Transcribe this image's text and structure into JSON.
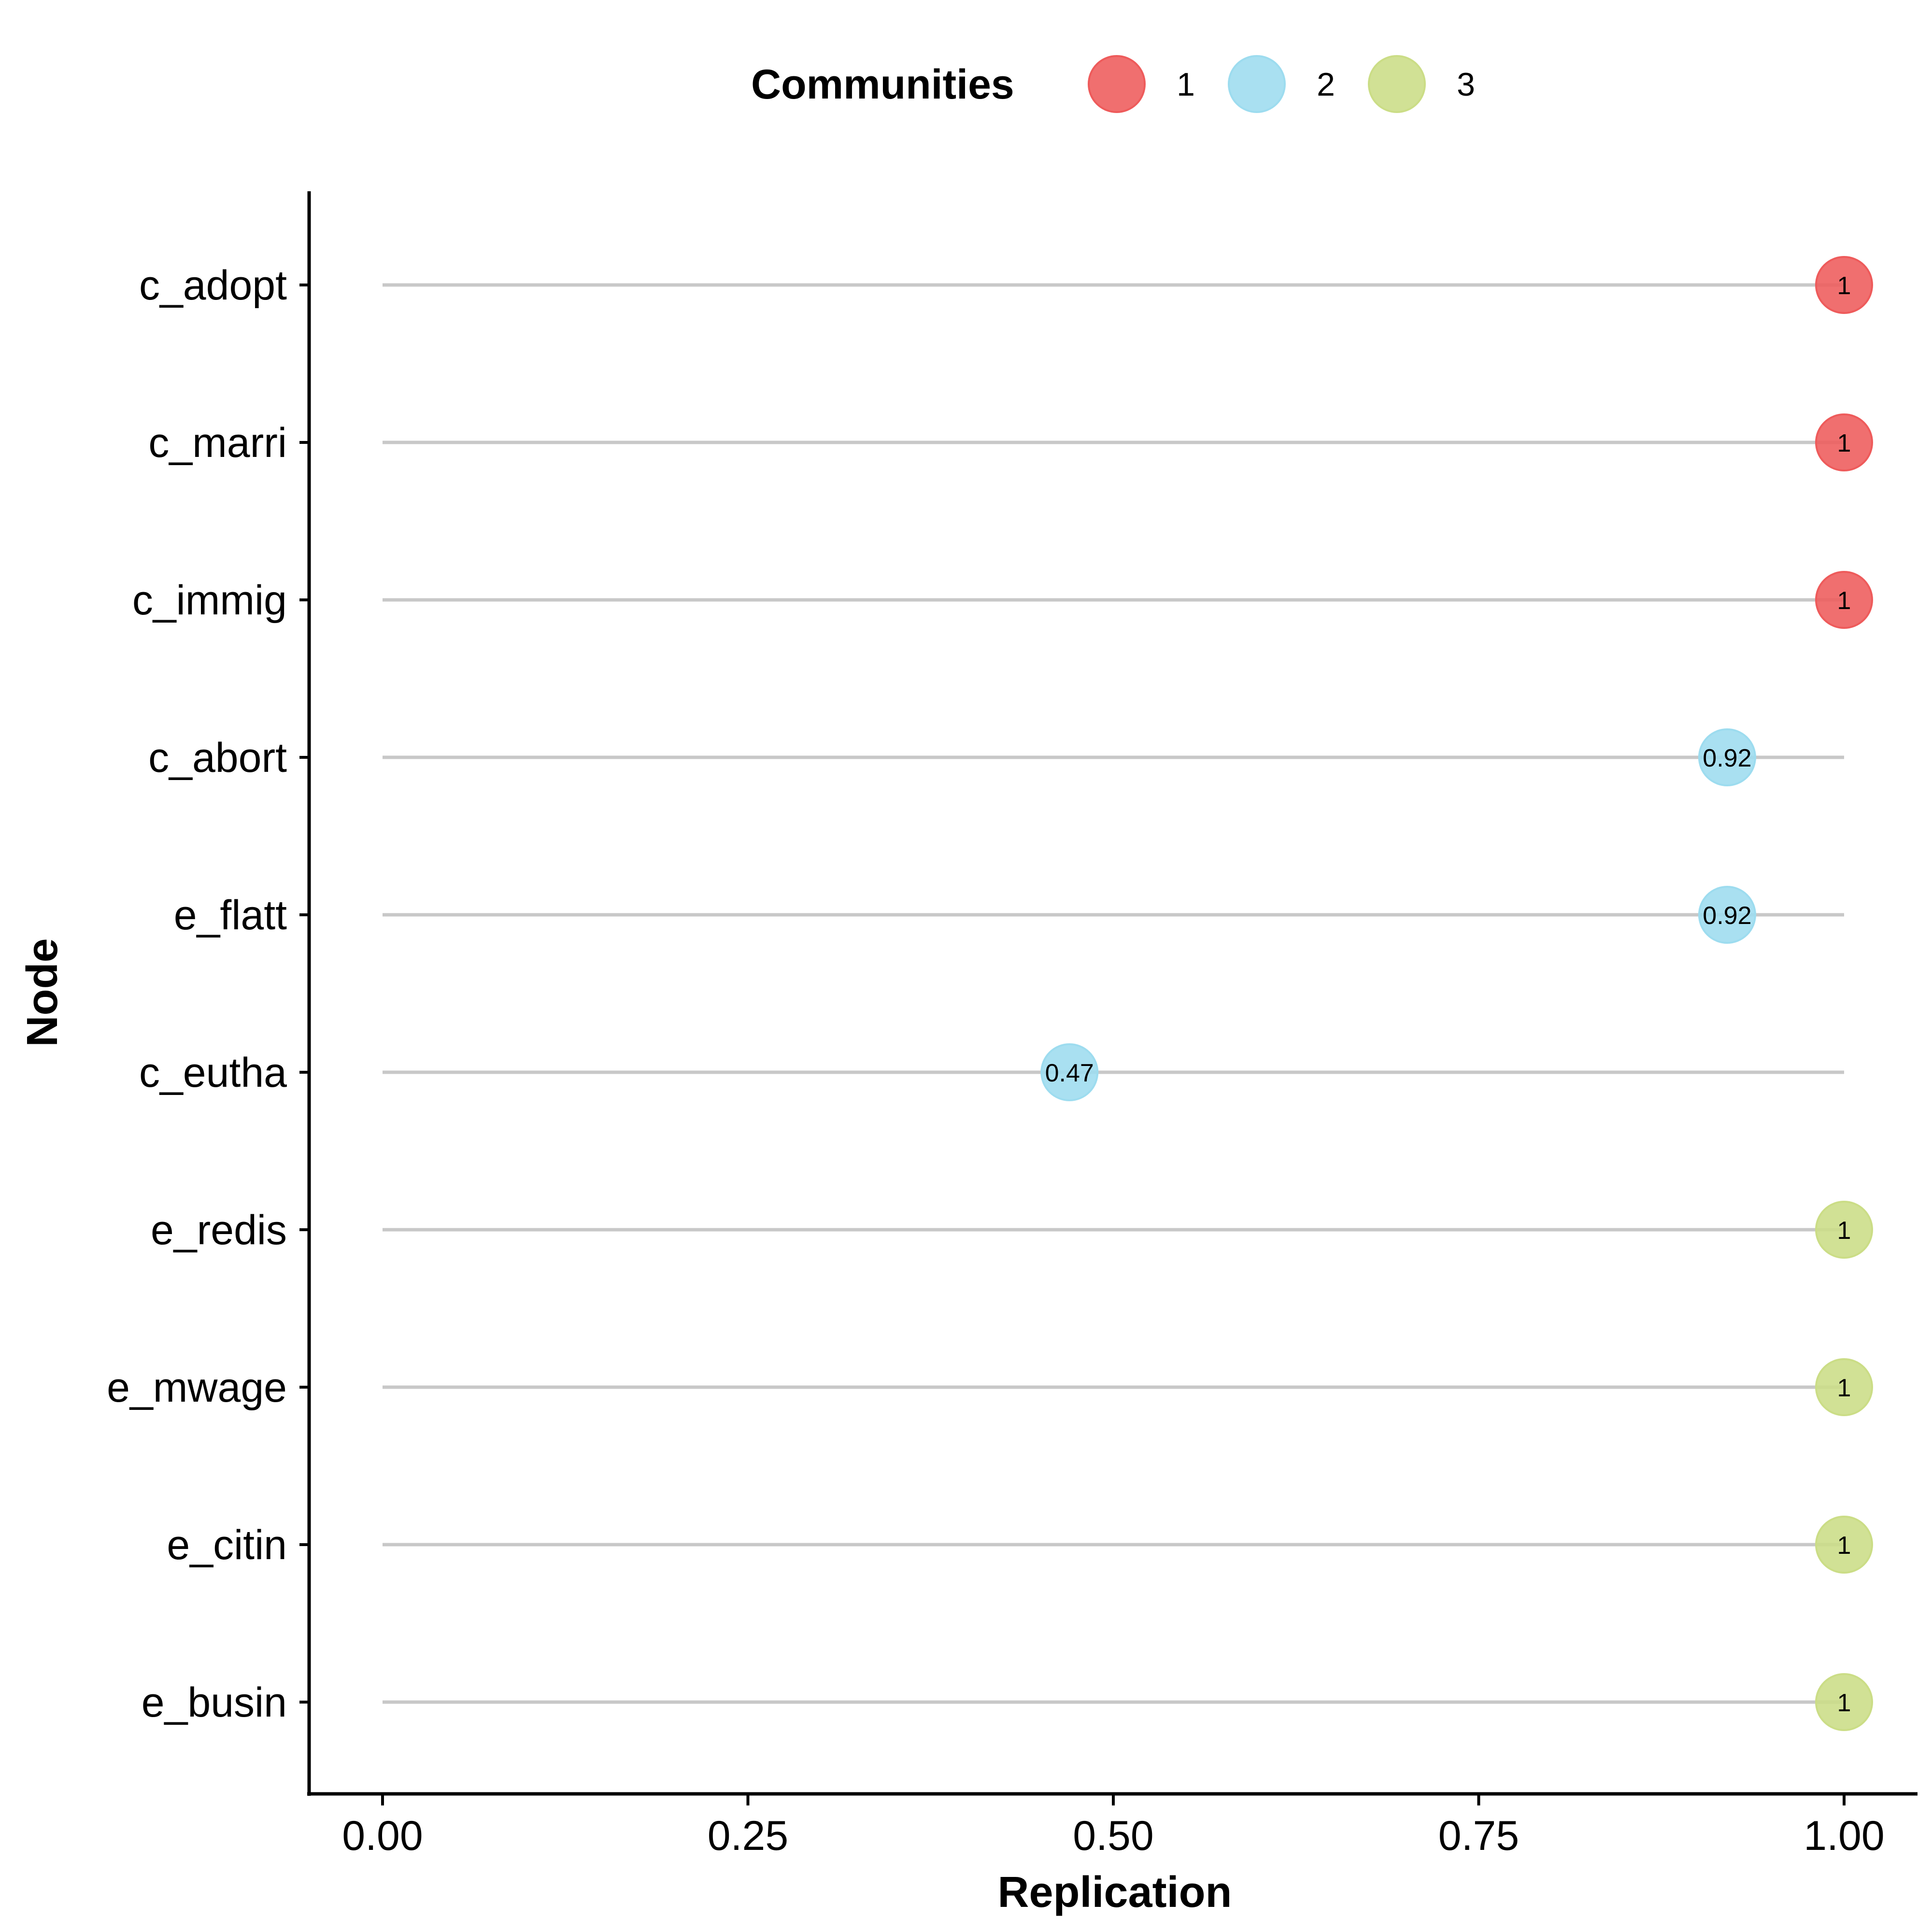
{
  "chart_data": {
    "type": "lollipop",
    "categories": [
      "c_adopt",
      "c_marri",
      "c_immig",
      "c_abort",
      "e_flatt",
      "c_eutha",
      "e_redis",
      "e_mwage",
      "e_citin",
      "e_busin"
    ],
    "values": [
      1,
      1,
      1,
      0.92,
      0.92,
      0.47,
      1,
      1,
      1,
      1
    ],
    "value_labels": [
      "1",
      "1",
      "1",
      "0.92",
      "0.92",
      "0.47",
      "1",
      "1",
      "1",
      "1"
    ],
    "community": [
      "1",
      "1",
      "1",
      "2",
      "2",
      "2",
      "3",
      "3",
      "3",
      "3"
    ],
    "xlabel": "Replication",
    "ylabel": "Node",
    "xlim": [
      0,
      1
    ],
    "xticks": [
      0,
      0.25,
      0.5,
      0.75,
      1
    ],
    "xtick_labels": [
      "0.00",
      "0.25",
      "0.50",
      "0.75",
      "1.00"
    ],
    "grid": false,
    "legend": {
      "title": "Communities",
      "position": "top",
      "entries": [
        {
          "label": "1",
          "color": "#ee5b5b"
        },
        {
          "label": "2",
          "color": "#9ddcef"
        },
        {
          "label": "3",
          "color": "#cbdd86"
        }
      ]
    }
  }
}
